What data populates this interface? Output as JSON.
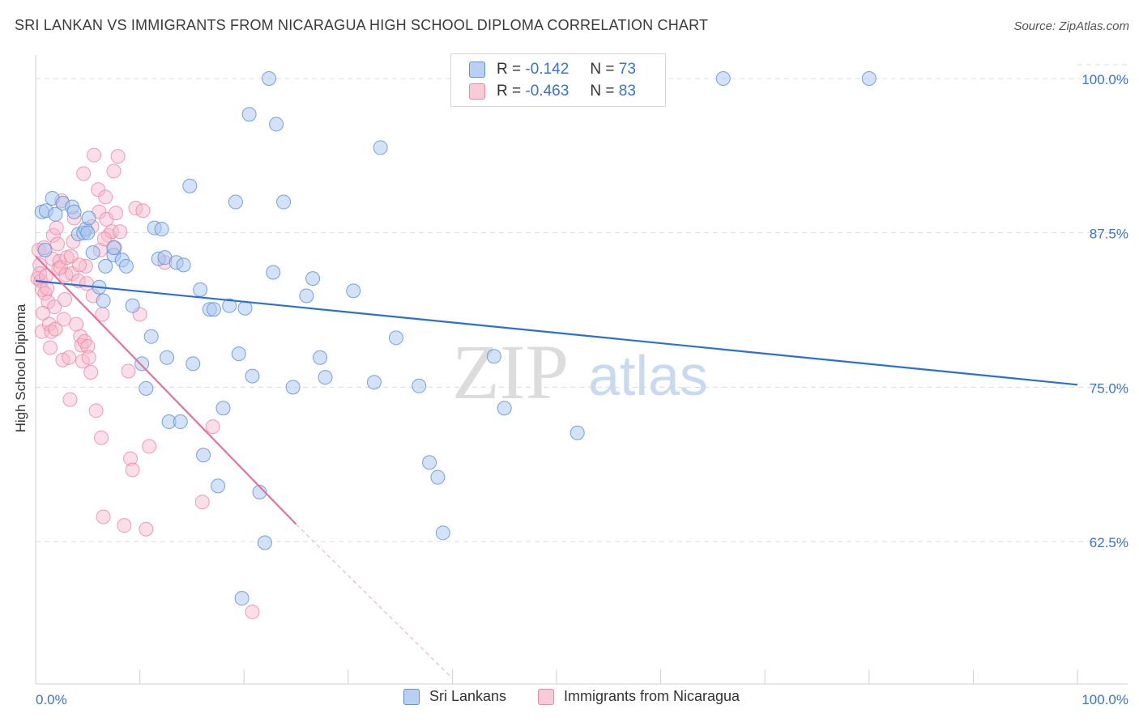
{
  "header": {
    "title": "SRI LANKAN VS IMMIGRANTS FROM NICARAGUA HIGH SCHOOL DIPLOMA CORRELATION CHART",
    "source": "Source: ZipAtlas.com"
  },
  "watermark": {
    "zip": "ZIP",
    "atlas": "atlas"
  },
  "colors": {
    "blue_fill": "#a9c6ef",
    "blue_stroke": "#5f93d8",
    "blue_line": "#2b6fd0",
    "pink_fill": "#f6b6c9",
    "pink_stroke": "#ec86a6",
    "pink_line": "#e4729a",
    "axis_text": "#3b73c9",
    "grid": "#dcdcdc"
  },
  "legend": {
    "items": [
      {
        "r_label": "R =",
        "r_value": "-0.142",
        "n_label": "N =",
        "n_value": "73"
      },
      {
        "r_label": "R =",
        "r_value": "-0.463",
        "n_label": "N =",
        "n_value": "83"
      }
    ]
  },
  "bottom_legend": {
    "series_a": "Sri Lankans",
    "series_b": "Immigrants from Nicaragua"
  },
  "chart_data": {
    "type": "scatter",
    "title": "SRI LANKAN VS IMMIGRANTS FROM NICARAGUA HIGH SCHOOL DIPLOMA CORRELATION CHART",
    "xlabel": "",
    "ylabel": "High School Diploma",
    "xlim": [
      0,
      100
    ],
    "ylim": [
      52,
      101.5
    ],
    "x_tick_labels": [
      "0.0%",
      "100.0%"
    ],
    "y_ticks": [
      62.5,
      75.0,
      87.5,
      100.0
    ],
    "y_tick_labels": [
      "62.5%",
      "75.0%",
      "87.5%",
      "100.0%"
    ],
    "grid": true,
    "series": [
      {
        "name": "Sri Lankans",
        "r": -0.142,
        "n": 73,
        "trend": {
          "x": [
            0,
            100
          ],
          "y": [
            83.6,
            75.2
          ]
        },
        "points": [
          [
            0.6,
            89.2
          ],
          [
            1.0,
            89.3
          ],
          [
            1.6,
            90.3
          ],
          [
            1.9,
            89.0
          ],
          [
            2.6,
            89.9
          ],
          [
            3.5,
            89.6
          ],
          [
            3.7,
            89.2
          ],
          [
            4.1,
            87.4
          ],
          [
            4.6,
            87.5
          ],
          [
            4.8,
            87.8
          ],
          [
            5.0,
            87.5
          ],
          [
            5.1,
            88.7
          ],
          [
            5.5,
            85.9
          ],
          [
            6.1,
            83.1
          ],
          [
            6.5,
            82.0
          ],
          [
            6.7,
            84.8
          ],
          [
            7.5,
            85.7
          ],
          [
            7.5,
            86.3
          ],
          [
            8.3,
            85.3
          ],
          [
            8.7,
            84.8
          ],
          [
            9.3,
            81.6
          ],
          [
            10.2,
            76.9
          ],
          [
            10.6,
            74.9
          ],
          [
            11.1,
            79.1
          ],
          [
            11.4,
            87.9
          ],
          [
            12.1,
            87.8
          ],
          [
            11.8,
            85.4
          ],
          [
            12.4,
            85.5
          ],
          [
            12.6,
            77.4
          ],
          [
            12.8,
            72.2
          ],
          [
            13.5,
            85.1
          ],
          [
            13.9,
            72.2
          ],
          [
            14.2,
            84.9
          ],
          [
            14.8,
            91.3
          ],
          [
            15.1,
            76.9
          ],
          [
            15.8,
            82.9
          ],
          [
            16.1,
            69.5
          ],
          [
            16.7,
            81.3
          ],
          [
            17.1,
            81.3
          ],
          [
            17.5,
            67.0
          ],
          [
            18.0,
            73.3
          ],
          [
            18.6,
            81.6
          ],
          [
            19.2,
            90.0
          ],
          [
            19.5,
            77.7
          ],
          [
            20.1,
            81.4
          ],
          [
            20.5,
            97.1
          ],
          [
            20.8,
            75.9
          ],
          [
            21.5,
            66.5
          ],
          [
            22.0,
            62.4
          ],
          [
            22.4,
            100.0
          ],
          [
            22.8,
            84.3
          ],
          [
            23.1,
            96.3
          ],
          [
            23.8,
            90.0
          ],
          [
            24.7,
            75.0
          ],
          [
            26.0,
            82.4
          ],
          [
            26.6,
            83.8
          ],
          [
            27.3,
            77.4
          ],
          [
            27.8,
            75.8
          ],
          [
            30.5,
            82.8
          ],
          [
            32.5,
            75.4
          ],
          [
            33.1,
            94.4
          ],
          [
            34.6,
            79.0
          ],
          [
            36.8,
            75.1
          ],
          [
            37.8,
            68.9
          ],
          [
            38.6,
            67.7
          ],
          [
            39.1,
            63.2
          ],
          [
            44.0,
            77.5
          ],
          [
            45.0,
            73.3
          ],
          [
            52.0,
            71.3
          ],
          [
            66.0,
            100.0
          ],
          [
            80.0,
            100.0
          ],
          [
            19.8,
            57.9
          ],
          [
            0.9,
            86.1
          ]
        ]
      },
      {
        "name": "Immigrants from Nicaragua",
        "r": -0.463,
        "n": 83,
        "trend": {
          "x": [
            0,
            25
          ],
          "y": [
            85.6,
            63.9
          ]
        },
        "trend_dashed": {
          "x": [
            25,
            40
          ],
          "y": [
            63.9,
            51.0
          ]
        },
        "points": [
          [
            0.2,
            83.8
          ],
          [
            0.3,
            86.1
          ],
          [
            0.4,
            84.9
          ],
          [
            0.5,
            83.6
          ],
          [
            0.6,
            82.9
          ],
          [
            0.6,
            79.5
          ],
          [
            0.8,
            86.3
          ],
          [
            0.9,
            82.6
          ],
          [
            1.1,
            83.0
          ],
          [
            1.2,
            81.9
          ],
          [
            1.3,
            80.1
          ],
          [
            1.5,
            79.5
          ],
          [
            1.6,
            85.4
          ],
          [
            1.7,
            87.3
          ],
          [
            1.8,
            81.5
          ],
          [
            1.9,
            79.7
          ],
          [
            2.1,
            86.6
          ],
          [
            2.2,
            84.6
          ],
          [
            2.3,
            85.2
          ],
          [
            2.4,
            84.7
          ],
          [
            2.5,
            90.1
          ],
          [
            2.6,
            77.2
          ],
          [
            2.8,
            82.1
          ],
          [
            2.9,
            84.1
          ],
          [
            3.0,
            85.5
          ],
          [
            3.2,
            77.4
          ],
          [
            3.3,
            74.0
          ],
          [
            3.5,
            84.2
          ],
          [
            3.7,
            88.7
          ],
          [
            3.9,
            80.1
          ],
          [
            4.1,
            83.6
          ],
          [
            4.3,
            79.1
          ],
          [
            4.4,
            78.4
          ],
          [
            4.5,
            77.1
          ],
          [
            4.6,
            92.3
          ],
          [
            4.7,
            78.7
          ],
          [
            4.8,
            84.8
          ],
          [
            5.0,
            78.3
          ],
          [
            5.1,
            77.4
          ],
          [
            5.3,
            76.2
          ],
          [
            5.5,
            82.4
          ],
          [
            5.6,
            93.8
          ],
          [
            5.8,
            73.1
          ],
          [
            6.0,
            91.0
          ],
          [
            6.1,
            89.2
          ],
          [
            6.3,
            70.9
          ],
          [
            6.4,
            80.9
          ],
          [
            6.5,
            64.5
          ],
          [
            6.7,
            90.4
          ],
          [
            6.8,
            88.6
          ],
          [
            7.0,
            87.3
          ],
          [
            7.3,
            87.6
          ],
          [
            7.5,
            92.5
          ],
          [
            7.7,
            89.1
          ],
          [
            7.9,
            93.7
          ],
          [
            8.1,
            87.6
          ],
          [
            8.5,
            63.8
          ],
          [
            8.9,
            76.3
          ],
          [
            9.1,
            69.2
          ],
          [
            9.3,
            68.3
          ],
          [
            9.6,
            89.5
          ],
          [
            10.0,
            80.9
          ],
          [
            10.3,
            89.3
          ],
          [
            10.6,
            63.5
          ],
          [
            10.9,
            70.2
          ],
          [
            12.4,
            85.1
          ],
          [
            16.0,
            65.7
          ],
          [
            17.0,
            71.8
          ],
          [
            20.8,
            56.8
          ],
          [
            0.4,
            84.2
          ],
          [
            1.0,
            84.0
          ],
          [
            2.0,
            87.9
          ],
          [
            3.4,
            85.6
          ],
          [
            4.2,
            84.9
          ],
          [
            5.4,
            88.0
          ],
          [
            6.2,
            86.1
          ],
          [
            0.7,
            81.0
          ],
          [
            1.4,
            78.2
          ],
          [
            2.7,
            80.5
          ],
          [
            3.6,
            86.8
          ],
          [
            4.9,
            83.4
          ],
          [
            6.6,
            87.0
          ],
          [
            7.6,
            86.3
          ]
        ]
      }
    ]
  }
}
